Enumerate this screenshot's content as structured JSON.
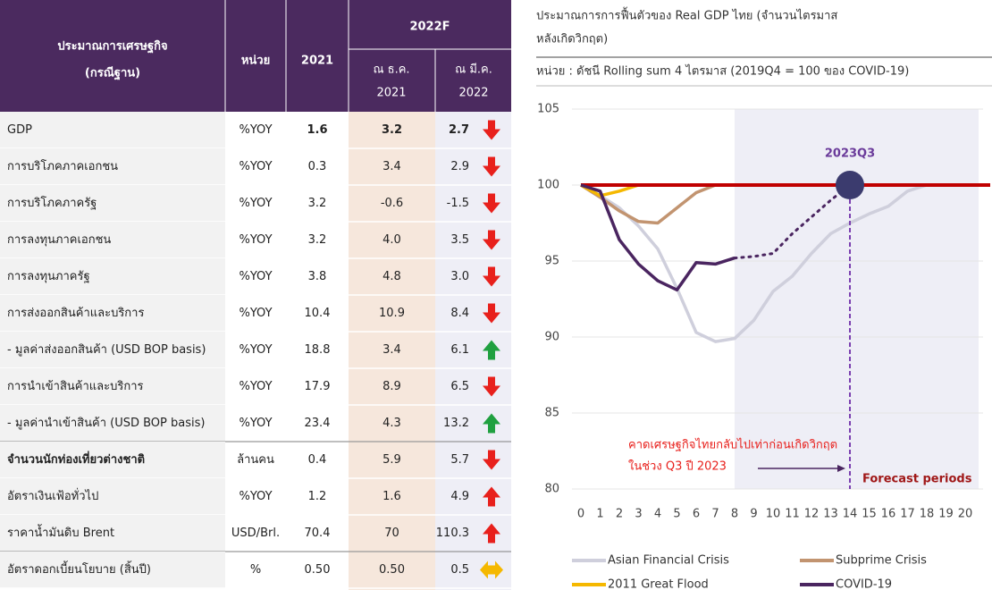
{
  "table": {
    "header": {
      "label": [
        "ประมาณการเศรษฐกิจ",
        "(กรณีฐาน)"
      ],
      "unit": "หน่วย",
      "year": "2021",
      "forecast": "2022F",
      "dec": [
        "ณ ธ.ค.",
        "2021"
      ],
      "mar": [
        "ณ มี.ค.",
        "2022"
      ]
    },
    "rows": [
      {
        "cells": [
          "GDP",
          "%YOY",
          "1.6",
          "3.2",
          "2.7"
        ],
        "arrow": "down",
        "bold_values": true
      },
      {
        "cells": [
          "การบริโภคภาคเอกชน",
          "%YOY",
          "0.3",
          "3.4",
          "2.9"
        ],
        "arrow": "down"
      },
      {
        "cells": [
          "การบริโภคภาครัฐ",
          "%YOY",
          "3.2",
          "-0.6",
          "-1.5"
        ],
        "arrow": "down"
      },
      {
        "cells": [
          "การลงทุนภาคเอกชน",
          "%YOY",
          "3.2",
          "4.0",
          "3.5"
        ],
        "arrow": "down"
      },
      {
        "cells": [
          "การลงทุนภาครัฐ",
          "%YOY",
          "3.8",
          "4.8",
          "3.0"
        ],
        "arrow": "down"
      },
      {
        "cells": [
          "การส่งออกสินค้าและบริการ",
          "%YOY",
          "10.4",
          "10.9",
          "8.4"
        ],
        "arrow": "down"
      },
      {
        "cells": [
          " - มูลค่าส่งออกสินค้า (USD BOP basis)",
          "%YOY",
          "18.8",
          "3.4",
          "6.1"
        ],
        "arrow": "up-green"
      },
      {
        "cells": [
          "การนำเข้าสินค้าและบริการ",
          "%YOY",
          "17.9",
          "8.9",
          "6.5"
        ],
        "arrow": "down"
      },
      {
        "cells": [
          " - มูลค่านำเข้าสินค้า (USD BOP basis)",
          "%YOY",
          "23.4",
          "4.3",
          "13.2"
        ],
        "arrow": "up-green"
      },
      {
        "cells": [
          "จำนวนนักท่องเที่ยวต่างชาติ",
          "ล้านคน",
          "0.4",
          "5.9",
          "5.7"
        ],
        "arrow": "down",
        "bold_label": true
      },
      {
        "cells": [
          "อัตราเงินเฟ้อทั่วไป",
          "%YOY",
          "1.2",
          "1.6",
          "4.9"
        ],
        "arrow": "up-red"
      },
      {
        "cells": [
          "ราคาน้ำมันดิบ Brent",
          "USD/Brl.",
          "70.4",
          "70",
          "110.3"
        ],
        "arrow": "up-red"
      },
      {
        "cells": [
          "อัตราดอกเบี้ยนโยบาย (สิ้นปี)",
          "%",
          "0.50",
          "0.50",
          "0.5"
        ],
        "arrow": "both"
      }
    ]
  },
  "chart_data": {
    "type": "line",
    "title": [
      "ประมาณการการฟื้นตัวของ Real GDP ไทย (จำนวนไตรมาส",
      "หลังเกิดวิกฤต)"
    ],
    "subtitle": "หน่วย : ดัชนี Rolling sum 4 ไตรมาส (2019Q4 = 100 ของ COVID-19)",
    "x": [
      0,
      1,
      2,
      3,
      4,
      5,
      6,
      7,
      8,
      9,
      10,
      11,
      12,
      13,
      14,
      15,
      16,
      17,
      18,
      19,
      20
    ],
    "xlim": [
      0,
      20
    ],
    "xticks": [
      0,
      1,
      2,
      3,
      4,
      5,
      6,
      7,
      8,
      9,
      10,
      11,
      12,
      13,
      14,
      15,
      16,
      17,
      18,
      19,
      20
    ],
    "ylim": [
      80,
      105
    ],
    "yticks": [
      80,
      85,
      90,
      95,
      100,
      105
    ],
    "grid": true,
    "series": [
      {
        "name": "Asian Financial Crisis",
        "color": "#cfcfdc",
        "values": [
          100,
          99.3,
          98.5,
          97.3,
          95.8,
          93.2,
          90.3,
          89.7,
          89.9,
          91.1,
          93.0,
          94.0,
          95.5,
          96.8,
          97.5,
          98.1,
          98.6,
          99.6,
          100,
          null,
          null
        ]
      },
      {
        "name": "Subprime Crisis",
        "color": "#c29470",
        "values": [
          100,
          99.2,
          98.3,
          97.6,
          97.5,
          98.5,
          99.5,
          100,
          null,
          null,
          null,
          null,
          null,
          null,
          null,
          null,
          null,
          null,
          null,
          null,
          null
        ]
      },
      {
        "name": "2011 Great Flood",
        "color": "#f5b800",
        "values": [
          100,
          99.3,
          99.6,
          100,
          null,
          null,
          null,
          null,
          null,
          null,
          null,
          null,
          null,
          null,
          null,
          null,
          null,
          null,
          null,
          null,
          null
        ]
      },
      {
        "name": "COVID-19",
        "color": "#4a2560",
        "values": [
          100,
          99.6,
          96.4,
          94.8,
          93.7,
          93.1,
          94.9,
          94.8,
          95.2,
          null,
          null,
          null,
          null,
          null,
          null,
          null,
          null,
          null,
          null,
          null,
          null
        ],
        "forecast_values": [
          null,
          null,
          null,
          null,
          null,
          null,
          null,
          null,
          95.2,
          95.3,
          95.5,
          96.8,
          97.9,
          99.0,
          100,
          null,
          null,
          null,
          null,
          null,
          null
        ]
      }
    ],
    "reference_line": {
      "value": 100,
      "color": "#c00000"
    },
    "forecast_region": {
      "from": 8,
      "to": 20,
      "label": "Forecast periods"
    },
    "marker": {
      "x": 14,
      "y": 100,
      "label": "2023Q3",
      "color": "#3b3b6e"
    },
    "annotation": [
      "คาดเศรษฐกิจไทยกลับไปเท่าก่อนเกิดวิกฤต",
      "ในช่วง Q3 ปี 2023"
    ]
  }
}
